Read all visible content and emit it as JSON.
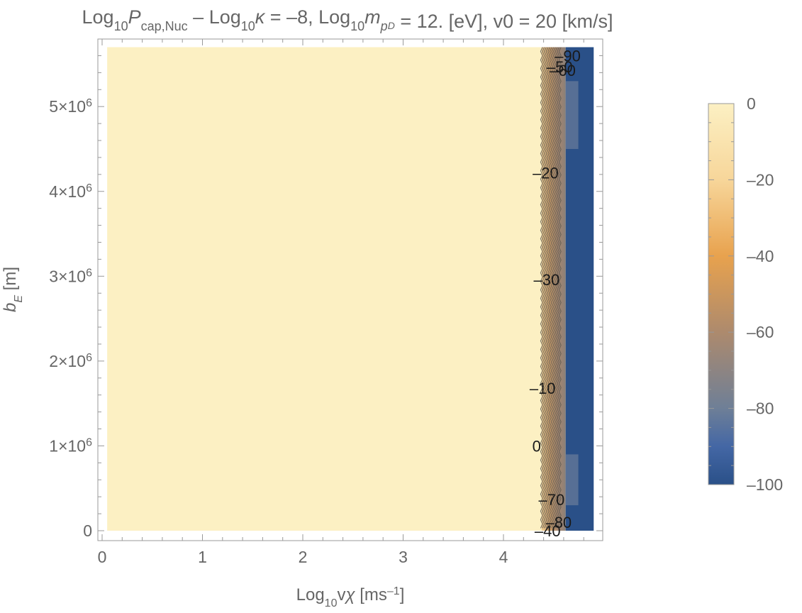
{
  "chart_data": {
    "type": "heatmap",
    "title": {
      "p1": "Log",
      "p1sub": "10",
      "p2": "P",
      "p2sub": "cap,Nuc",
      "p3": " – Log",
      "p3sub": "10",
      "p4": "κ",
      "p5": " = –8, Log",
      "p5sub": "10",
      "p6": "m",
      "p6sub": "p",
      "p6subsub": "D",
      "p7": " = 12. [eV], v0 = 20 [km/s]"
    },
    "xlabel": {
      "p1": "Log",
      "p1sub": "10",
      "p2": "v",
      "p3": "χ",
      "p4": " [ms",
      "p4sup": "–1",
      "p5": "]"
    },
    "ylabel": {
      "p1": "b",
      "p1sub": "E",
      "p2": " [m]"
    },
    "xlim": [
      0,
      5
    ],
    "ylim": [
      0,
      5700000
    ],
    "data_x_range": [
      0.05,
      4.9
    ],
    "x_ticks": [
      {
        "value": 0,
        "label": "0"
      },
      {
        "value": 1,
        "label": "1"
      },
      {
        "value": 2,
        "label": "2"
      },
      {
        "value": 3,
        "label": "3"
      },
      {
        "value": 4,
        "label": "4"
      }
    ],
    "y_ticks": [
      {
        "value": 0,
        "label": "0",
        "mant": "",
        "exp": ""
      },
      {
        "value": 1000000,
        "label": "",
        "mant": "1×10",
        "exp": "6"
      },
      {
        "value": 2000000,
        "label": "",
        "mant": "2×10",
        "exp": "6"
      },
      {
        "value": 3000000,
        "label": "",
        "mant": "3×10",
        "exp": "6"
      },
      {
        "value": 4000000,
        "label": "",
        "mant": "4×10",
        "exp": "6"
      },
      {
        "value": 5000000,
        "label": "",
        "mant": "5×10",
        "exp": "6"
      }
    ],
    "regions": [
      {
        "x_from": 0.05,
        "x_to": 4.38,
        "value": 0
      },
      {
        "x_from": 4.38,
        "x_to": 4.62,
        "value": -50
      },
      {
        "x_from": 4.62,
        "x_to": 4.9,
        "value": -100
      }
    ],
    "contour_labels": [
      {
        "text": "–90",
        "x": 4.64,
        "y": 5600000
      },
      {
        "text": "–50",
        "x": 4.56,
        "y": 5470000
      },
      {
        "text": "–60",
        "x": 4.59,
        "y": 5430000
      },
      {
        "text": "–20",
        "x": 4.42,
        "y": 4220000
      },
      {
        "text": "–30",
        "x": 4.43,
        "y": 2960000
      },
      {
        "text": "–10",
        "x": 4.39,
        "y": 1680000
      },
      {
        "text": "0",
        "x": 4.33,
        "y": 1000000
      },
      {
        "text": "–70",
        "x": 4.48,
        "y": 370000
      },
      {
        "text": "–80",
        "x": 4.55,
        "y": 100000
      },
      {
        "text": "–40",
        "x": 4.44,
        "y": 0
      }
    ],
    "colorbar": {
      "min": -100,
      "max": 0,
      "ticks": [
        {
          "value": 0,
          "label": "0"
        },
        {
          "value": -20,
          "label": "–20"
        },
        {
          "value": -40,
          "label": "–40"
        },
        {
          "value": -60,
          "label": "–60"
        },
        {
          "value": -80,
          "label": "–80"
        },
        {
          "value": -100,
          "label": "–100"
        }
      ],
      "stops": [
        {
          "value": 0,
          "color": "#fcf0c3"
        },
        {
          "value": -20,
          "color": "#f7d69a"
        },
        {
          "value": -40,
          "color": "#e8a24e"
        },
        {
          "value": -60,
          "color": "#ad8a6d"
        },
        {
          "value": -80,
          "color": "#6e7f97"
        },
        {
          "value": -90,
          "color": "#4467a5"
        },
        {
          "value": -100,
          "color": "#2a5088"
        }
      ]
    },
    "grid": false,
    "legend": "colorbar-right"
  }
}
